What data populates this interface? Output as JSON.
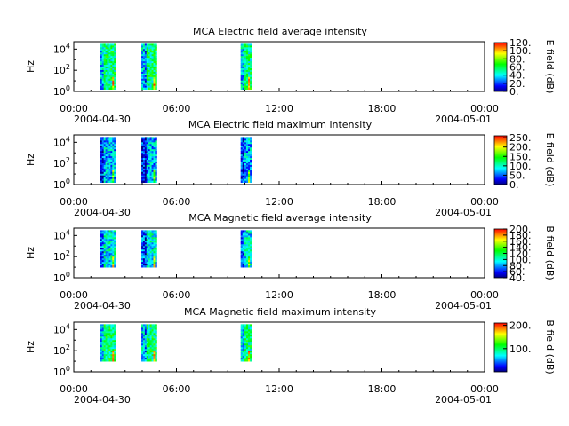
{
  "chart_data": [
    {
      "type": "heatmap",
      "title": "MCA  Electric field average intensity",
      "ylabel": "Hz",
      "colorbar_label": "E field (dB)",
      "colorbar_ticks": [
        "120.",
        "100.",
        "80.",
        "60.",
        "40.",
        "20.",
        "0."
      ],
      "colorbar_range": [
        0,
        120
      ],
      "yticks": [
        {
          "base": "10",
          "exp": "4"
        },
        {
          "base": "10",
          "exp": "2"
        },
        {
          "base": "10",
          "exp": "0"
        }
      ],
      "ylim_log10": [
        0,
        4.7
      ],
      "xticks": [
        "00:00",
        "06:00",
        "12:00",
        "18:00",
        "00:00"
      ],
      "x_dates": [
        "2004-04-30",
        "2004-05-01"
      ],
      "intervals_hours": [
        [
          1.55,
          2.45
        ],
        [
          3.95,
          4.85
        ],
        [
          9.75,
          10.4
        ]
      ],
      "freq_band_log10": [
        0.2,
        4.5
      ],
      "level": 0.45
    },
    {
      "type": "heatmap",
      "title": "MCA  Electric field maximum intensity",
      "ylabel": "Hz",
      "colorbar_label": "E field (dB)",
      "colorbar_ticks": [
        "250.",
        "200.",
        "150.",
        "100.",
        "50.",
        "0."
      ],
      "colorbar_range": [
        0,
        260
      ],
      "yticks": [
        {
          "base": "10",
          "exp": "4"
        },
        {
          "base": "10",
          "exp": "2"
        },
        {
          "base": "10",
          "exp": "0"
        }
      ],
      "ylim_log10": [
        0,
        4.7
      ],
      "xticks": [
        "00:00",
        "06:00",
        "12:00",
        "18:00",
        "00:00"
      ],
      "x_dates": [
        "2004-04-30",
        "2004-05-01"
      ],
      "intervals_hours": [
        [
          1.55,
          2.45
        ],
        [
          3.95,
          4.85
        ],
        [
          9.75,
          10.4
        ]
      ],
      "freq_band_log10": [
        0.2,
        4.5
      ],
      "level": 0.28
    },
    {
      "type": "heatmap",
      "title": "MCA  Magnetic field average intensity",
      "ylabel": "Hz",
      "colorbar_label": "B field (dB)",
      "colorbar_ticks": [
        "200.",
        "180.",
        "160.",
        "140.",
        "120.",
        "100.",
        "80.",
        "60.",
        "40."
      ],
      "colorbar_range": [
        40,
        200
      ],
      "yticks": [
        {
          "base": "10",
          "exp": "4"
        },
        {
          "base": "10",
          "exp": "2"
        },
        {
          "base": "10",
          "exp": "0"
        }
      ],
      "ylim_log10": [
        0,
        4.7
      ],
      "xticks": [
        "00:00",
        "06:00",
        "12:00",
        "18:00",
        "00:00"
      ],
      "x_dates": [
        "2004-04-30",
        "2004-05-01"
      ],
      "intervals_hours": [
        [
          1.55,
          2.45
        ],
        [
          3.95,
          4.85
        ],
        [
          9.75,
          10.4
        ]
      ],
      "freq_band_log10": [
        1.0,
        4.5
      ],
      "level": 0.35
    },
    {
      "type": "heatmap",
      "title": "MCA  Magnetic field maximum intensity",
      "ylabel": "Hz",
      "colorbar_label": "B field (dB)",
      "colorbar_ticks": [
        "200.",
        "100."
      ],
      "colorbar_range": [
        0,
        210
      ],
      "yticks": [
        {
          "base": "10",
          "exp": "4"
        },
        {
          "base": "10",
          "exp": "2"
        },
        {
          "base": "10",
          "exp": "0"
        }
      ],
      "ylim_log10": [
        0,
        4.7
      ],
      "xticks": [
        "00:00",
        "06:00",
        "12:00",
        "18:00",
        "00:00"
      ],
      "x_dates": [
        "2004-04-30",
        "2004-05-01"
      ],
      "intervals_hours": [
        [
          1.55,
          2.45
        ],
        [
          3.95,
          4.85
        ],
        [
          9.75,
          10.4
        ]
      ],
      "freq_band_log10": [
        1.0,
        4.5
      ],
      "level": 0.45
    }
  ],
  "palette": [
    "#000080",
    "#0000ff",
    "#0080ff",
    "#00ffff",
    "#00ff80",
    "#00ff00",
    "#80ff00",
    "#ffff00",
    "#ff8000",
    "#ff0000"
  ]
}
